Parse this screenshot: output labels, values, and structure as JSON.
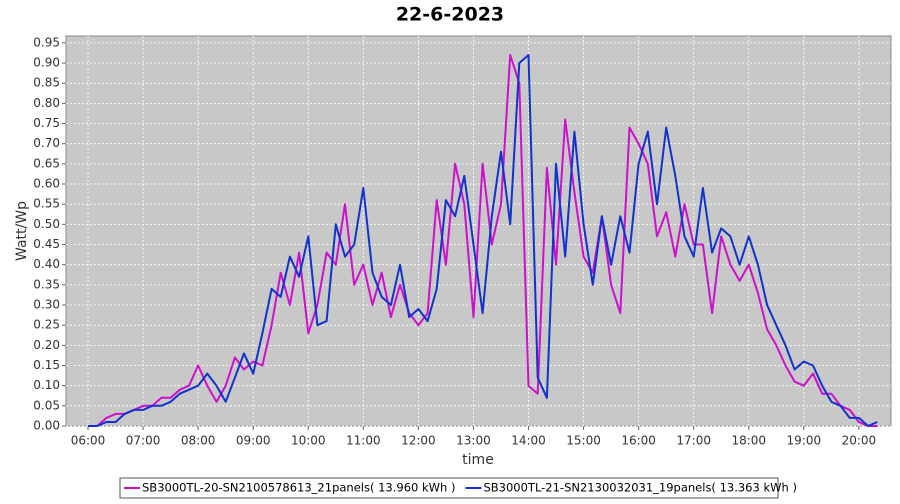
{
  "chart_data": {
    "type": "line",
    "title": "22-6-2023",
    "x_label": "time",
    "y_label": "Watt/Wp",
    "x": [
      "06:00",
      "06:10",
      "06:20",
      "06:30",
      "06:40",
      "06:50",
      "07:00",
      "07:10",
      "07:20",
      "07:30",
      "07:40",
      "07:50",
      "08:00",
      "08:10",
      "08:20",
      "08:30",
      "08:40",
      "08:50",
      "09:00",
      "09:10",
      "09:20",
      "09:30",
      "09:40",
      "09:50",
      "10:00",
      "10:10",
      "10:20",
      "10:30",
      "10:40",
      "10:50",
      "11:00",
      "11:10",
      "11:20",
      "11:30",
      "11:40",
      "11:50",
      "12:00",
      "12:10",
      "12:20",
      "12:30",
      "12:40",
      "12:50",
      "13:00",
      "13:10",
      "13:20",
      "13:30",
      "13:40",
      "13:50",
      "14:00",
      "14:10",
      "14:20",
      "14:30",
      "14:40",
      "14:50",
      "15:00",
      "15:10",
      "15:20",
      "15:30",
      "15:40",
      "15:50",
      "16:00",
      "16:10",
      "16:20",
      "16:30",
      "16:40",
      "16:50",
      "17:00",
      "17:10",
      "17:20",
      "17:30",
      "17:40",
      "17:50",
      "18:00",
      "18:10",
      "18:20",
      "18:30",
      "18:40",
      "18:50",
      "19:00",
      "19:10",
      "19:20",
      "19:30",
      "19:40",
      "19:50",
      "20:00",
      "20:10",
      "20:20"
    ],
    "series": [
      {
        "name": "SB3000TL-20-SN2100578613_21panels( 13.960 kWh )",
        "color": "#cc11cc",
        "values": [
          0.0,
          0.0,
          0.02,
          0.03,
          0.03,
          0.04,
          0.05,
          0.05,
          0.07,
          0.07,
          0.09,
          0.1,
          0.15,
          0.1,
          0.06,
          0.1,
          0.17,
          0.14,
          0.16,
          0.15,
          0.25,
          0.38,
          0.3,
          0.43,
          0.23,
          0.3,
          0.43,
          0.4,
          0.55,
          0.35,
          0.4,
          0.3,
          0.38,
          0.27,
          0.35,
          0.28,
          0.25,
          0.28,
          0.56,
          0.4,
          0.65,
          0.55,
          0.27,
          0.65,
          0.45,
          0.55,
          0.92,
          0.85,
          0.1,
          0.08,
          0.64,
          0.4,
          0.76,
          0.58,
          0.42,
          0.38,
          0.52,
          0.35,
          0.28,
          0.74,
          0.7,
          0.65,
          0.47,
          0.53,
          0.42,
          0.55,
          0.45,
          0.45,
          0.28,
          0.47,
          0.4,
          0.36,
          0.4,
          0.33,
          0.24,
          0.2,
          0.15,
          0.11,
          0.1,
          0.13,
          0.08,
          0.08,
          0.05,
          0.04,
          0.01,
          0.0,
          0.0
        ]
      },
      {
        "name": "SB3000TL-21-SN2130032031_19panels( 13.363 kWh )",
        "color": "#1133cc",
        "values": [
          0.0,
          0.0,
          0.01,
          0.01,
          0.03,
          0.04,
          0.04,
          0.05,
          0.05,
          0.06,
          0.08,
          0.09,
          0.1,
          0.13,
          0.1,
          0.06,
          0.12,
          0.18,
          0.13,
          0.23,
          0.34,
          0.32,
          0.42,
          0.37,
          0.47,
          0.25,
          0.26,
          0.5,
          0.42,
          0.45,
          0.59,
          0.38,
          0.32,
          0.3,
          0.4,
          0.27,
          0.29,
          0.26,
          0.34,
          0.56,
          0.52,
          0.62,
          0.45,
          0.28,
          0.52,
          0.68,
          0.5,
          0.9,
          0.92,
          0.12,
          0.07,
          0.65,
          0.42,
          0.73,
          0.5,
          0.35,
          0.52,
          0.4,
          0.52,
          0.43,
          0.65,
          0.73,
          0.55,
          0.74,
          0.62,
          0.47,
          0.42,
          0.59,
          0.43,
          0.49,
          0.47,
          0.4,
          0.47,
          0.4,
          0.3,
          0.25,
          0.2,
          0.14,
          0.16,
          0.15,
          0.1,
          0.06,
          0.05,
          0.02,
          0.02,
          0.0,
          0.01
        ]
      }
    ],
    "xlim": [
      "05:36",
      "20:35"
    ],
    "xticks": [
      "06:00",
      "07:00",
      "08:00",
      "09:00",
      "10:00",
      "11:00",
      "12:00",
      "13:00",
      "14:00",
      "15:00",
      "16:00",
      "17:00",
      "18:00",
      "19:00",
      "20:00"
    ],
    "ylim": [
      0,
      0.967
    ],
    "yticks": [
      {
        "value": 0,
        "label": "0.00"
      },
      {
        "value": 0.05,
        "label": "0.05"
      },
      {
        "value": 0.1,
        "label": "0.10"
      },
      {
        "value": 0.15,
        "label": "0.15"
      },
      {
        "value": 0.2,
        "label": "0.20"
      },
      {
        "value": 0.25,
        "label": "0.25"
      },
      {
        "value": 0.3,
        "label": "0.30"
      },
      {
        "value": 0.35,
        "label": "0.35"
      },
      {
        "value": 0.4,
        "label": "0.40"
      },
      {
        "value": 0.45,
        "label": "0.45"
      },
      {
        "value": 0.5,
        "label": "0.50"
      },
      {
        "value": 0.55,
        "label": "0.55"
      },
      {
        "value": 0.6,
        "label": "0.60"
      },
      {
        "value": 0.65,
        "label": "0.65"
      },
      {
        "value": 0.7,
        "label": "0.70"
      },
      {
        "value": 0.75,
        "label": "0.75"
      },
      {
        "value": 0.8,
        "label": "0.80"
      },
      {
        "value": 0.85,
        "label": "0.85"
      },
      {
        "value": 0.9,
        "label": "0.90"
      },
      {
        "value": 0.95,
        "label": "0.95"
      }
    ],
    "grid": true,
    "legend": "bottom"
  }
}
